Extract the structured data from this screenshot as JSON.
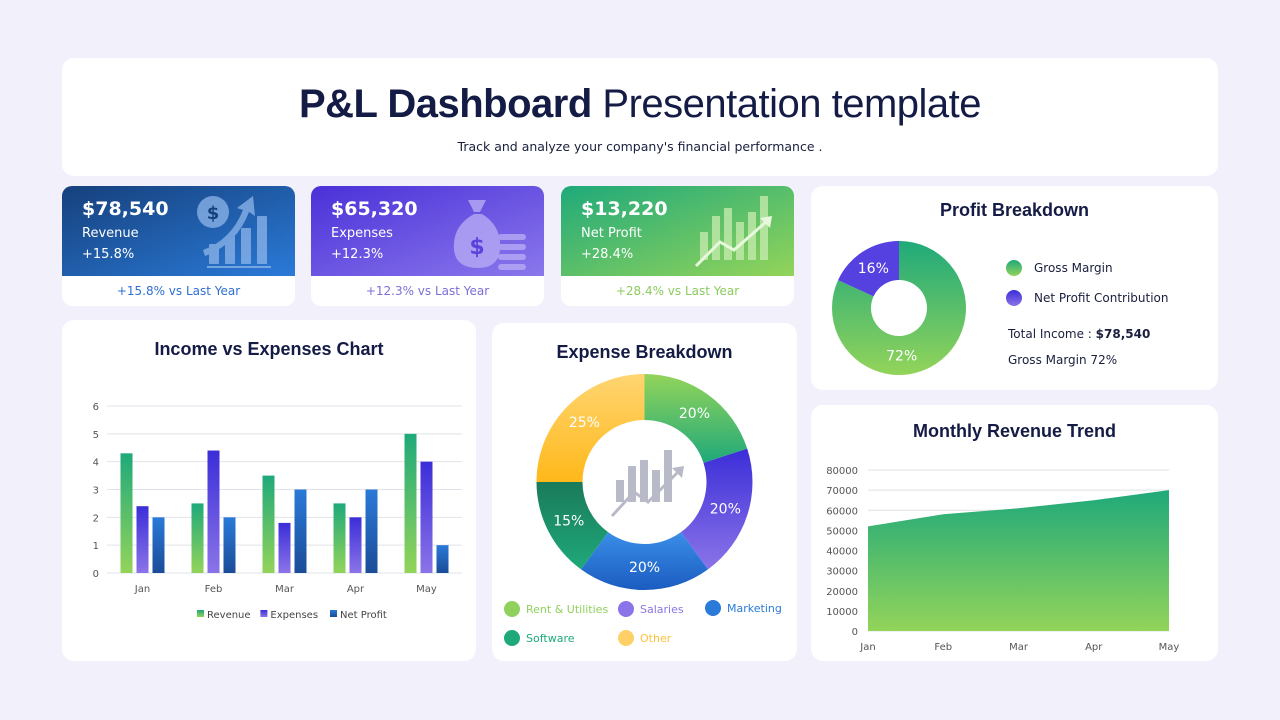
{
  "header": {
    "title_bold": "P&L Dashboard",
    "title_rest": " Presentation template",
    "subtitle": "Track and analyze your company's financial performance ."
  },
  "kpis": [
    {
      "value": "$78,540",
      "label": "Revenue",
      "change": "+15.8%",
      "footer": "+15.8% vs Last Year",
      "icon": "dollar-growth-icon",
      "footer_color": "#2f6fd0"
    },
    {
      "value": "$65,320",
      "label": "Expenses",
      "change": "+12.3%",
      "footer": "+12.3% vs Last Year",
      "icon": "money-bag-icon",
      "footer_color": "#7b6fd6"
    },
    {
      "value": "$13,220",
      "label": "Net Profit",
      "change": "+28.4%",
      "footer": "+28.4% vs Last Year",
      "icon": "growth-chart-icon",
      "footer_color": "#8ccb5e"
    }
  ],
  "profit": {
    "title": "Profit Breakdown",
    "legend": [
      {
        "label": "Gross Margin",
        "color": "#5cc46a"
      },
      {
        "label": "Net Profit Contribution",
        "color": "#5540e0"
      }
    ],
    "total_label": "Total Income : ",
    "total_value": "$78,540",
    "gross_line": "Gross Margin 72%"
  },
  "income_chart_title": "Income vs Expenses Chart",
  "expense": {
    "title": "Expense Breakdown",
    "legend": [
      {
        "label": "Rent & Utilities",
        "color": "#8fd15c"
      },
      {
        "label": "Salaries",
        "color": "#8b74e8"
      },
      {
        "label": "Marketing",
        "color": "#2a7ad8"
      },
      {
        "label": "Software",
        "color": "#1fa97a"
      },
      {
        "label": "Other",
        "color": "#ffd067"
      }
    ]
  },
  "revenue_trend_title": "Monthly Revenue Trend",
  "chart_data": [
    {
      "type": "bar",
      "title": "Income vs Expenses Chart",
      "categories": [
        "Jan",
        "Feb",
        "Mar",
        "Apr",
        "May"
      ],
      "ylim": [
        0,
        6
      ],
      "yticks": [
        "0",
        "1",
        "2",
        "3",
        "4",
        "5",
        "6"
      ],
      "series": [
        {
          "name": "Revenue",
          "values": [
            4.3,
            2.5,
            3.5,
            2.5,
            5.0
          ],
          "color": "#4fbd6a"
        },
        {
          "name": "Expenses",
          "values": [
            2.4,
            4.4,
            1.8,
            2.0,
            4.0
          ],
          "color": "#5540e0"
        },
        {
          "name": "Net Profit",
          "values": [
            2.0,
            2.0,
            3.0,
            3.0,
            1.0
          ],
          "color": "#2a7ad8"
        }
      ],
      "legend": "bottom",
      "grid": true
    },
    {
      "type": "pie",
      "title": "Expense Breakdown",
      "slices": [
        {
          "label": "Rent & Utilities",
          "value": 20,
          "text": "20%",
          "color": "#5cc46a"
        },
        {
          "label": "Salaries",
          "value": 20,
          "text": "20%",
          "color": "#6450e6"
        },
        {
          "label": "Marketing",
          "value": 20,
          "text": "20%",
          "color": "#2a7ad8"
        },
        {
          "label": "Software",
          "value": 15,
          "text": "15%",
          "color": "#1fa97a"
        },
        {
          "label": "Other",
          "value": 25,
          "text": "25%",
          "color": "#ffc13a"
        }
      ]
    },
    {
      "type": "pie",
      "title": "Profit Breakdown",
      "slices": [
        {
          "label": "Gross Margin",
          "value": 72,
          "text": "72%",
          "color": "#5cc46a"
        },
        {
          "label": "Net Profit Contribution",
          "value": 16,
          "text": "16%",
          "color": "#5540e0"
        }
      ]
    },
    {
      "type": "area",
      "title": "Monthly Revenue Trend",
      "categories": [
        "Jan",
        "Feb",
        "Mar",
        "Apr",
        "May"
      ],
      "values": [
        52000,
        58000,
        61000,
        65000,
        70000
      ],
      "ylim": [
        0,
        80000
      ],
      "yticks": [
        "0",
        "10000",
        "20000",
        "30000",
        "40000",
        "50000",
        "60000",
        "70000",
        "80000"
      ],
      "grid": true
    }
  ]
}
